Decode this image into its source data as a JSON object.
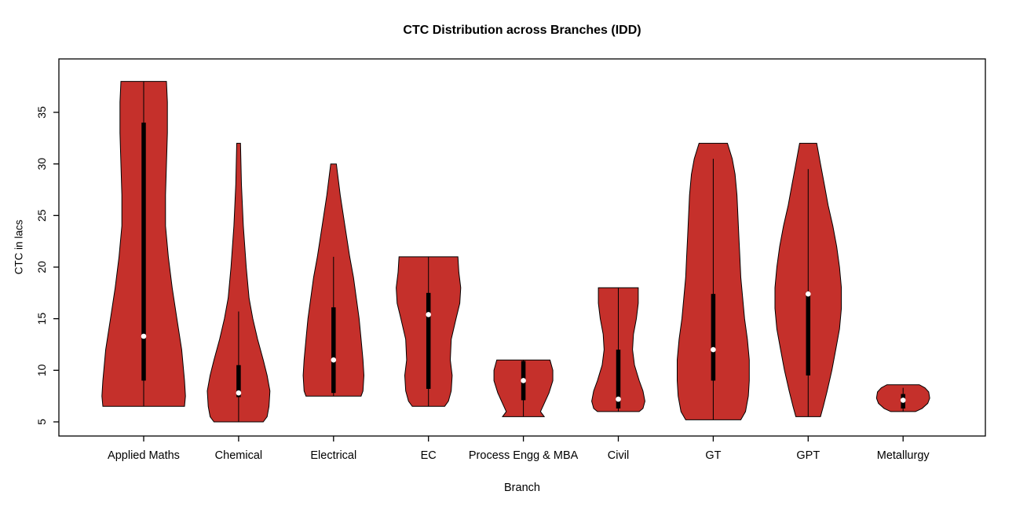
{
  "colors": {
    "violin_fill": "#C5302B",
    "violin_stroke": "#000000",
    "box_fill": "#000000",
    "median_fill": "#ffffff",
    "axis": "#000000",
    "background": "#ffffff"
  },
  "chart_data": {
    "type": "violin",
    "title": "CTC Distribution across Branches (IDD)",
    "xlabel": "Branch",
    "ylabel": "CTC in lacs",
    "yticks": [
      5,
      10,
      15,
      20,
      25,
      30,
      35
    ],
    "ylim": [
      3.6,
      40.2
    ],
    "grid": false,
    "categories": [
      "Applied Maths",
      "Chemical",
      "Electrical",
      "EC",
      "Process Engg & MBA",
      "Civil",
      "GT",
      "GPT",
      "Metallurgy"
    ],
    "violins": [
      {
        "label": "Applied Maths",
        "min": 6.5,
        "max": 38,
        "q1": 9,
        "q3": 34,
        "median": 13.3,
        "whisker": [
          6.5,
          38
        ],
        "shape": [
          [
            6.5,
            0.43
          ],
          [
            7.5,
            0.44
          ],
          [
            9,
            0.43
          ],
          [
            12,
            0.4
          ],
          [
            15,
            0.35
          ],
          [
            18,
            0.3
          ],
          [
            21,
            0.26
          ],
          [
            24,
            0.23
          ],
          [
            27,
            0.23
          ],
          [
            30,
            0.24
          ],
          [
            33,
            0.25
          ],
          [
            36,
            0.25
          ],
          [
            38,
            0.24
          ]
        ]
      },
      {
        "label": "Chemical",
        "min": 5,
        "max": 32,
        "q1": 7.4,
        "q3": 10.5,
        "median": 7.8,
        "whisker": [
          5,
          15.7
        ],
        "shape": [
          [
            5,
            0.26
          ],
          [
            5.5,
            0.3
          ],
          [
            6.5,
            0.32
          ],
          [
            8,
            0.33
          ],
          [
            9.5,
            0.3
          ],
          [
            11,
            0.26
          ],
          [
            13,
            0.2
          ],
          [
            15,
            0.15
          ],
          [
            17,
            0.11
          ],
          [
            20,
            0.08
          ],
          [
            24,
            0.05
          ],
          [
            28,
            0.03
          ],
          [
            32,
            0.02
          ]
        ]
      },
      {
        "label": "Electrical",
        "min": 7.5,
        "max": 30,
        "q1": 7.8,
        "q3": 16.1,
        "median": 11,
        "whisker": [
          7.5,
          21
        ],
        "shape": [
          [
            7.5,
            0.29
          ],
          [
            8,
            0.31
          ],
          [
            9.5,
            0.32
          ],
          [
            11,
            0.31
          ],
          [
            13,
            0.29
          ],
          [
            15,
            0.27
          ],
          [
            17,
            0.24
          ],
          [
            19,
            0.21
          ],
          [
            21,
            0.17
          ],
          [
            24,
            0.12
          ],
          [
            27,
            0.07
          ],
          [
            30,
            0.03
          ]
        ]
      },
      {
        "label": "EC",
        "min": 6.5,
        "max": 21,
        "q1": 8.2,
        "q3": 17.5,
        "median": 15.4,
        "whisker": [
          6.5,
          21
        ],
        "shape": [
          [
            6.5,
            0.17
          ],
          [
            7,
            0.21
          ],
          [
            8,
            0.24
          ],
          [
            9.5,
            0.25
          ],
          [
            11,
            0.23
          ],
          [
            13,
            0.24
          ],
          [
            15,
            0.29
          ],
          [
            16.5,
            0.33
          ],
          [
            18,
            0.34
          ],
          [
            19.5,
            0.32
          ],
          [
            21,
            0.31
          ]
        ]
      },
      {
        "label": "Process Engg & MBA",
        "min": 5.5,
        "max": 11,
        "q1": 7.1,
        "q3": 10.9,
        "median": 9,
        "whisker": [
          5.5,
          11
        ],
        "shape": [
          [
            5.5,
            0.22
          ],
          [
            6,
            0.18
          ],
          [
            6.8,
            0.22
          ],
          [
            7.8,
            0.27
          ],
          [
            9,
            0.31
          ],
          [
            10,
            0.31
          ],
          [
            11,
            0.28
          ]
        ]
      },
      {
        "label": "Civil",
        "min": 6,
        "max": 18,
        "q1": 6.3,
        "q3": 12,
        "median": 7.2,
        "whisker": [
          6,
          18
        ],
        "shape": [
          [
            6,
            0.22
          ],
          [
            6.3,
            0.26
          ],
          [
            7,
            0.28
          ],
          [
            8,
            0.26
          ],
          [
            9,
            0.22
          ],
          [
            10.5,
            0.17
          ],
          [
            12,
            0.15
          ],
          [
            13.5,
            0.16
          ],
          [
            15,
            0.19
          ],
          [
            16.5,
            0.21
          ],
          [
            18,
            0.21
          ]
        ]
      },
      {
        "label": "GT",
        "min": 5.2,
        "max": 32,
        "q1": 9,
        "q3": 17.4,
        "median": 12,
        "whisker": [
          5.2,
          30.5
        ],
        "shape": [
          [
            5.2,
            0.29
          ],
          [
            6,
            0.34
          ],
          [
            7.5,
            0.37
          ],
          [
            9,
            0.38
          ],
          [
            11,
            0.38
          ],
          [
            13,
            0.36
          ],
          [
            15,
            0.33
          ],
          [
            17,
            0.31
          ],
          [
            19,
            0.29
          ],
          [
            21,
            0.28
          ],
          [
            23,
            0.27
          ],
          [
            25,
            0.26
          ],
          [
            27,
            0.25
          ],
          [
            29,
            0.23
          ],
          [
            30.5,
            0.2
          ],
          [
            32,
            0.15
          ]
        ]
      },
      {
        "label": "GPT",
        "min": 5.5,
        "max": 32,
        "q1": 9.5,
        "q3": 17.6,
        "median": 17.4,
        "whisker": [
          5.5,
          29.5
        ],
        "shape": [
          [
            5.5,
            0.13
          ],
          [
            6.5,
            0.16
          ],
          [
            8,
            0.2
          ],
          [
            10,
            0.25
          ],
          [
            12,
            0.29
          ],
          [
            14,
            0.33
          ],
          [
            16,
            0.35
          ],
          [
            18,
            0.35
          ],
          [
            20,
            0.33
          ],
          [
            22,
            0.3
          ],
          [
            24,
            0.26
          ],
          [
            26,
            0.21
          ],
          [
            28,
            0.17
          ],
          [
            30,
            0.13
          ],
          [
            32,
            0.09
          ]
        ]
      },
      {
        "label": "Metallurgy",
        "min": 6,
        "max": 8.6,
        "q1": 6.3,
        "q3": 7.7,
        "median": 7.1,
        "whisker": [
          6,
          8.3
        ],
        "shape": [
          [
            6,
            0.13
          ],
          [
            6.3,
            0.2
          ],
          [
            6.8,
            0.26
          ],
          [
            7.3,
            0.28
          ],
          [
            7.9,
            0.27
          ],
          [
            8.3,
            0.23
          ],
          [
            8.6,
            0.17
          ]
        ]
      }
    ]
  }
}
